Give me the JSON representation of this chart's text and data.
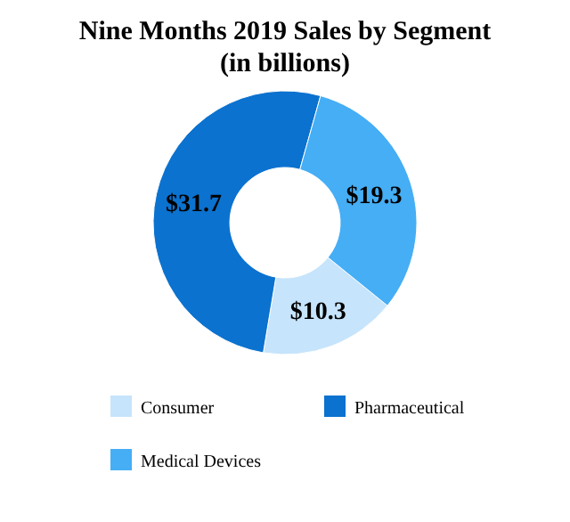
{
  "chart_data": {
    "type": "donut",
    "title": "Nine Months 2019 Sales by Segment\n(in billions)",
    "categories": [
      "Consumer",
      "Pharmaceutical",
      "Medical Devices"
    ],
    "values": [
      10.3,
      31.7,
      19.3
    ],
    "colors": [
      "#c6e4fb",
      "#0b72cf",
      "#45aef5"
    ],
    "value_labels": [
      "$10.3",
      "$31.7",
      "$19.3"
    ],
    "legend": "bottom"
  }
}
